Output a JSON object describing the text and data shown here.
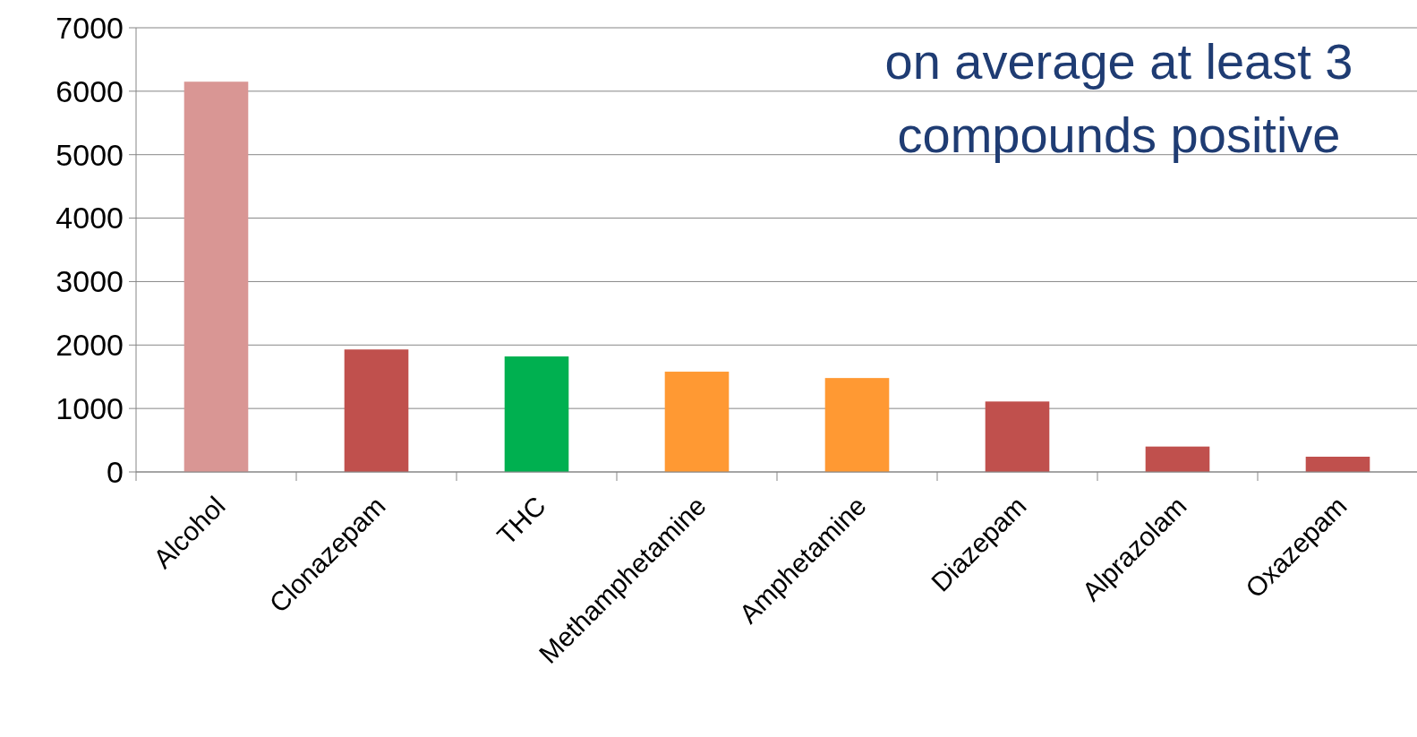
{
  "chart_data": {
    "type": "bar",
    "categories": [
      "Alcohol",
      "Clonazepam",
      "THC",
      "Methamphetamine",
      "Amphetamine",
      "Diazepam",
      "Alprazolam",
      "Oxazepam"
    ],
    "values": [
      6150,
      1930,
      1820,
      1580,
      1480,
      1110,
      400,
      240
    ],
    "colors": [
      "#d99694",
      "#c0504d",
      "#00b050",
      "#ff9933",
      "#ff9933",
      "#c0504d",
      "#c0504d",
      "#c0504d"
    ],
    "ylim": [
      0,
      7000
    ],
    "yticks": [
      0,
      1000,
      2000,
      3000,
      4000,
      5000,
      6000,
      7000
    ],
    "grid": "y",
    "annotations": [
      "on average at least 3",
      "compounds positive"
    ]
  }
}
